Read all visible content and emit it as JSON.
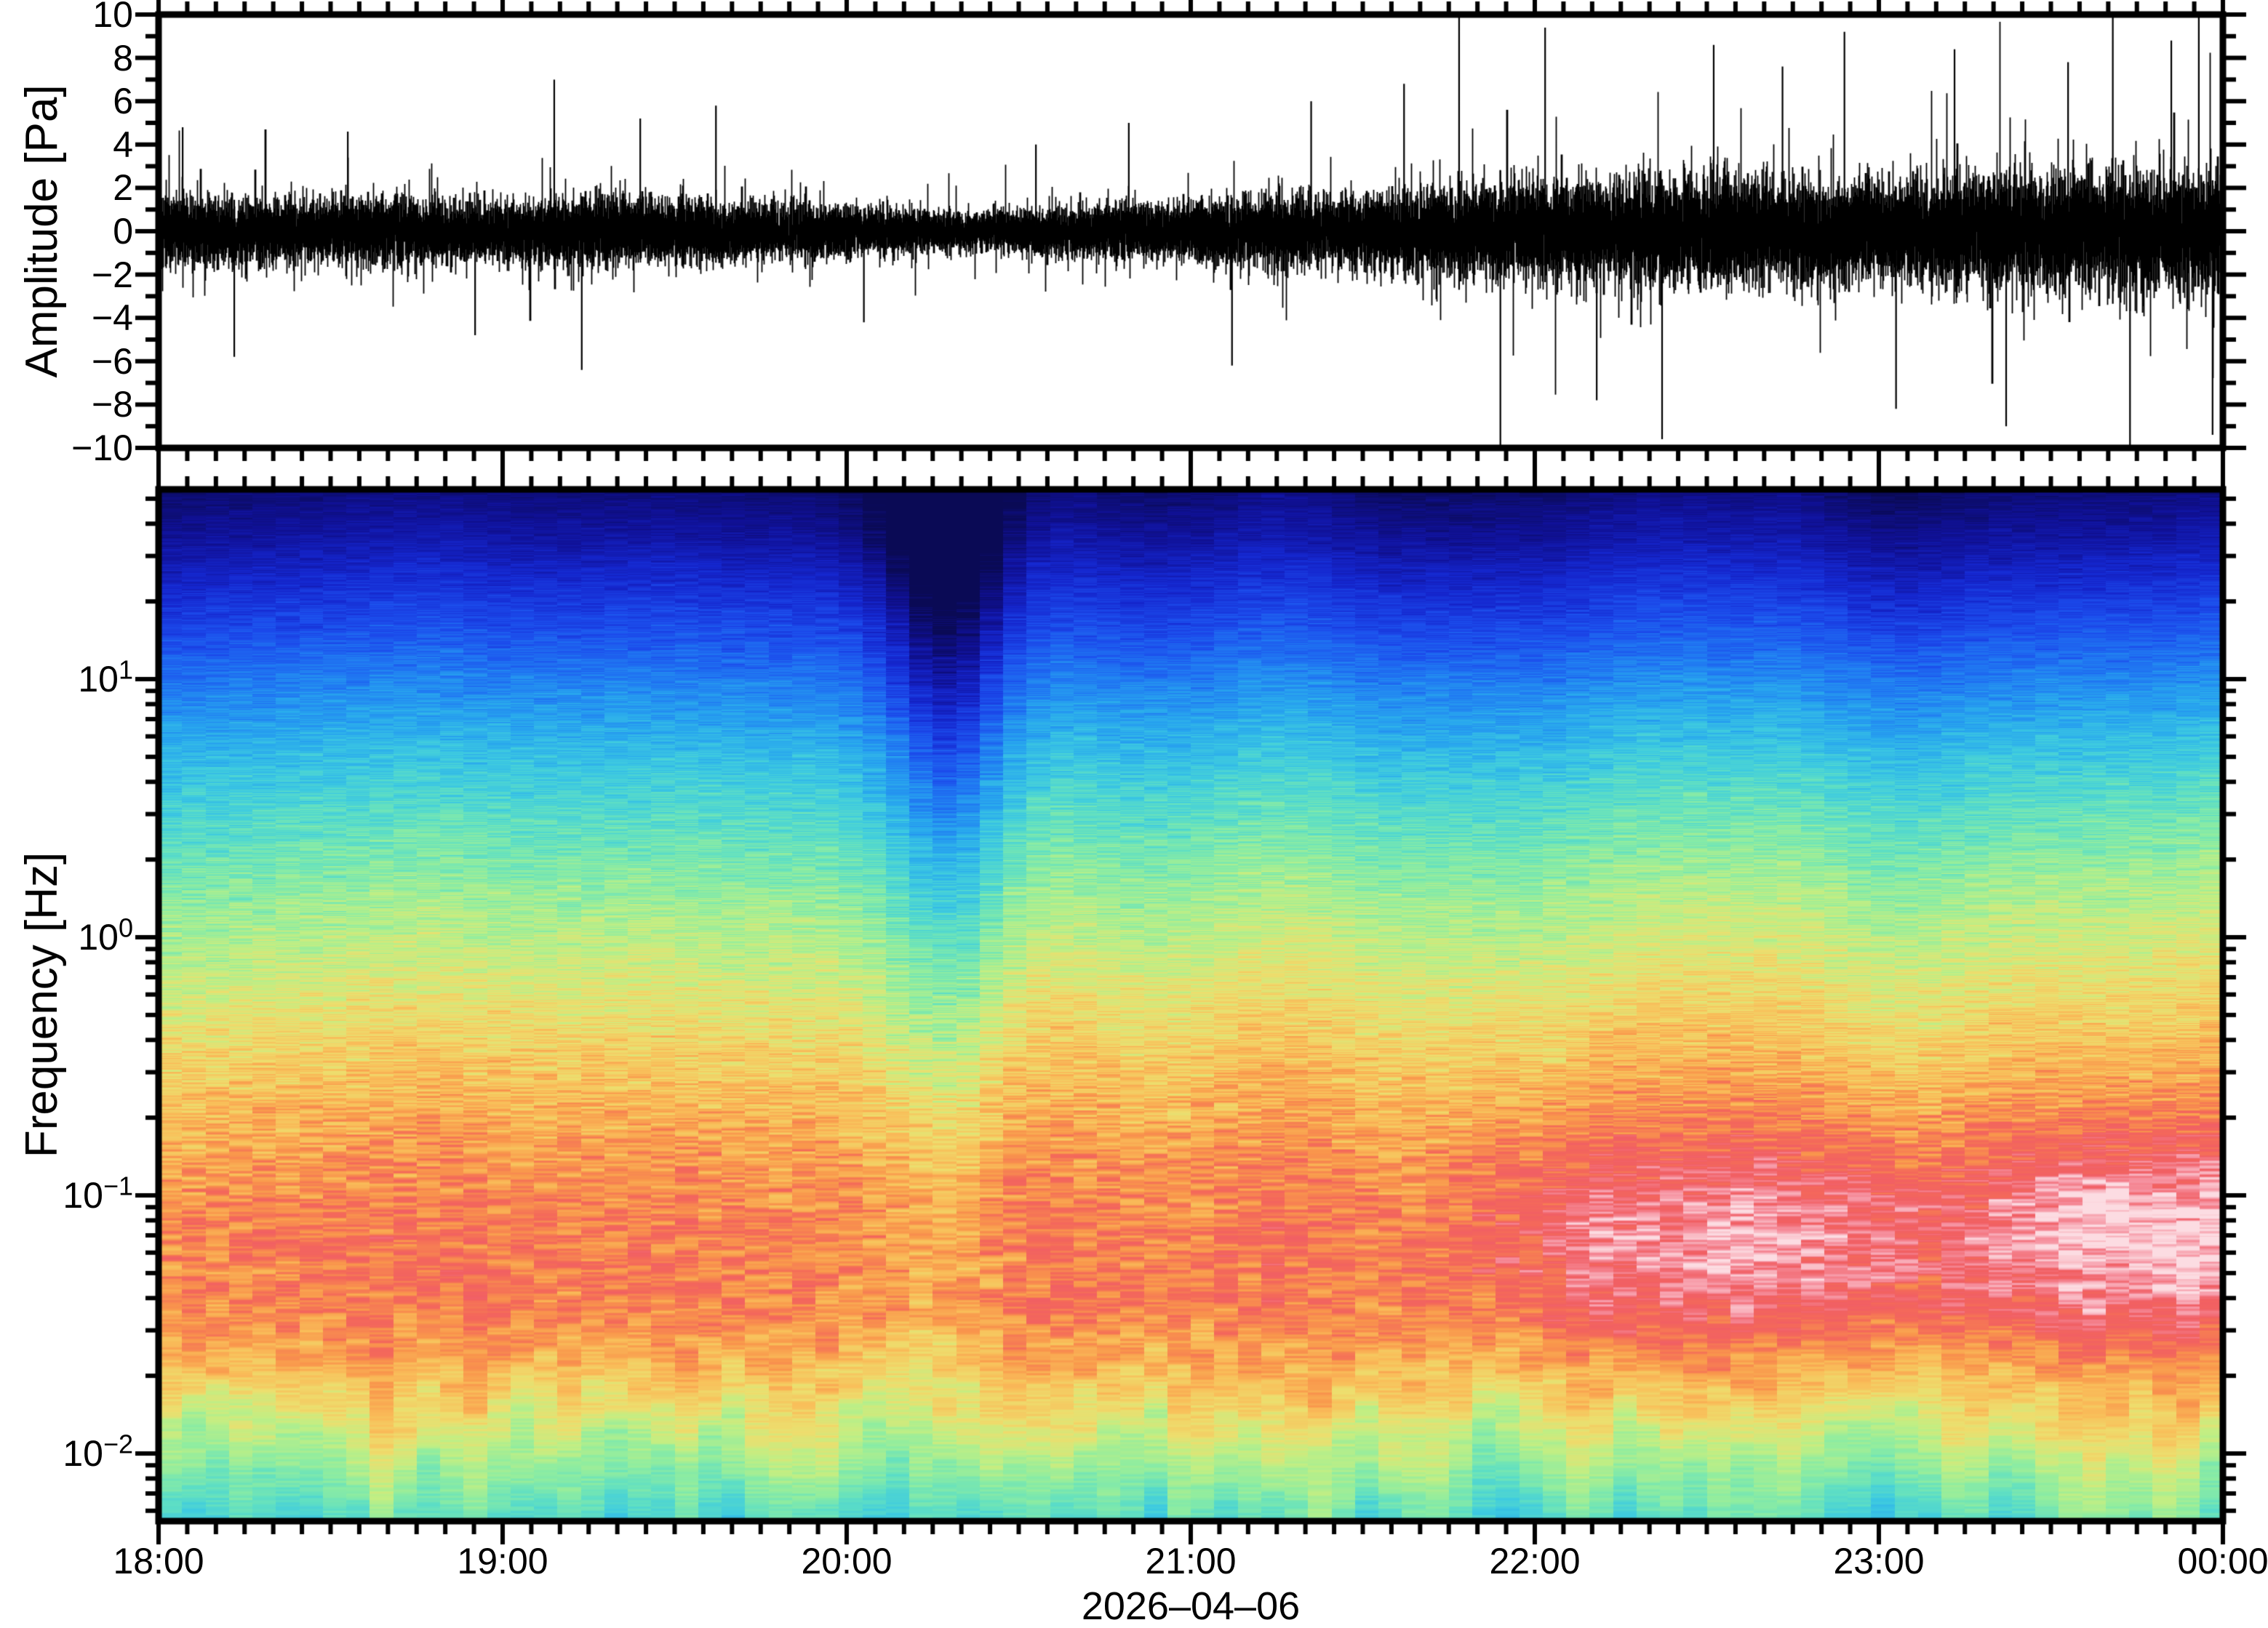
{
  "figure": {
    "background": "#ffffff",
    "frame_color": "#000000",
    "text_color": "#000000"
  },
  "x_axis": {
    "tick_labels": [
      "18:00",
      "19:00",
      "20:00",
      "21:00",
      "22:00",
      "23:00",
      "00:00"
    ],
    "tick_hours": [
      18,
      19,
      20,
      21,
      22,
      23,
      24
    ],
    "minor_tick_minutes": 5,
    "date_label": "2026–04–06"
  },
  "chart_data": [
    {
      "id": "pressure-waveform",
      "type": "line",
      "ylabel": "Amplitude [Pa]",
      "ylim": [
        -10,
        10
      ],
      "ytick_step": 2,
      "ytick_labels": [
        "10",
        "8",
        "6",
        "4",
        "2",
        "0",
        "−2",
        "−4",
        "−6",
        "−8",
        "−10"
      ],
      "x_range_hours": [
        18,
        24
      ],
      "line_color": "#000000",
      "description": "Zero-mean broadband infrasound pressure trace. Noise RMS shrinks to a minimum near 20:20, then grows toward midnight with sporadic spikes.",
      "envelope": {
        "hours": [
          18.0,
          18.5,
          19.0,
          19.3,
          19.7,
          20.0,
          20.18,
          20.35,
          20.6,
          21.0,
          21.5,
          22.0,
          22.5,
          23.0,
          23.5,
          24.0
        ],
        "sigma_pa": [
          0.38,
          0.35,
          0.34,
          0.4,
          0.32,
          0.28,
          0.24,
          0.21,
          0.27,
          0.34,
          0.42,
          0.55,
          0.58,
          0.56,
          0.63,
          0.68
        ]
      },
      "spikes_hour_amp_pa": [
        [
          18.07,
          2.4
        ],
        [
          18.22,
          -2.9
        ],
        [
          18.55,
          2.3
        ],
        [
          18.92,
          -2.4
        ],
        [
          19.15,
          3.5
        ],
        [
          19.23,
          -3.2
        ],
        [
          19.4,
          2.6
        ],
        [
          19.62,
          2.9
        ],
        [
          20.05,
          -2.1
        ],
        [
          20.55,
          2.0
        ],
        [
          20.82,
          2.5
        ],
        [
          21.12,
          -3.1
        ],
        [
          21.35,
          3.0
        ],
        [
          21.62,
          3.4
        ],
        [
          21.78,
          5.4
        ],
        [
          21.9,
          -5.6
        ],
        [
          22.03,
          4.7
        ],
        [
          22.18,
          -3.9
        ],
        [
          22.37,
          -4.8
        ],
        [
          22.52,
          4.3
        ],
        [
          22.72,
          3.8
        ],
        [
          22.9,
          4.6
        ],
        [
          23.05,
          -4.1
        ],
        [
          23.22,
          4.2
        ],
        [
          23.37,
          -4.5
        ],
        [
          23.55,
          3.9
        ],
        [
          23.68,
          6.7
        ],
        [
          23.73,
          -5.2
        ],
        [
          23.85,
          4.4
        ],
        [
          23.93,
          5.1
        ],
        [
          23.97,
          -4.7
        ]
      ],
      "seed": 11
    },
    {
      "id": "spectrogram",
      "type": "heatmap",
      "ylabel": "Frequency [Hz]",
      "yscale": "log",
      "freq_limits_hz": [
        0.0055,
        54
      ],
      "ytick_decade_exponents": [
        1,
        0,
        -1,
        -2
      ],
      "x_range_hours": [
        18,
        24
      ],
      "time_bins": 88,
      "bin_df_hz": 0.003,
      "log_noise_scale": 120,
      "seed": 7,
      "description": "Power spectrogram, log-frequency axis. Low power (dark blue) above 10 Hz, increasing power toward 0.1 Hz (red). Quiet interval near 20:20; microbarom/long-period band (0.02-0.2 Hz) intensifies to pink-white after 22:00; teal-green floor below 0.01 Hz.",
      "colormap_stops": [
        [
          0.0,
          "#0a0a55"
        ],
        [
          0.07,
          "#101197"
        ],
        [
          0.14,
          "#1527cf"
        ],
        [
          0.21,
          "#1c4cec"
        ],
        [
          0.28,
          "#2079f2"
        ],
        [
          0.35,
          "#28a7ee"
        ],
        [
          0.42,
          "#3ecbe0"
        ],
        [
          0.48,
          "#61e0c2"
        ],
        [
          0.54,
          "#90eda0"
        ],
        [
          0.6,
          "#c3ee83"
        ],
        [
          0.66,
          "#edde6e"
        ],
        [
          0.72,
          "#f9bf5a"
        ],
        [
          0.78,
          "#f9974c"
        ],
        [
          0.84,
          "#f4695a"
        ],
        [
          0.89,
          "#f15f64"
        ],
        [
          0.94,
          "#f692a0"
        ],
        [
          1.0,
          "#fcdce2"
        ]
      ],
      "base_profile": {
        "log10_f": [
          1.74,
          1.55,
          1.35,
          1.15,
          0.95,
          0.72,
          0.45,
          0.15,
          -0.15,
          -0.5,
          -0.85,
          -1.15,
          -1.45,
          -1.65,
          -1.85,
          -2.05,
          -2.26
        ],
        "level": [
          0.02,
          0.07,
          0.14,
          0.21,
          0.29,
          0.37,
          0.45,
          0.53,
          0.6,
          0.68,
          0.755,
          0.8,
          0.79,
          0.73,
          0.65,
          0.56,
          0.47
        ]
      },
      "striation_amp": {
        "log10_f": [
          1.74,
          1.2,
          0.6,
          0.0,
          -0.6,
          -1.3,
          -1.7,
          -2.0,
          -2.26
        ],
        "amp": [
          0.03,
          0.05,
          0.06,
          0.07,
          0.085,
          0.095,
          0.08,
          0.06,
          0.05
        ]
      },
      "quiet_dip": {
        "center_hour": 20.3,
        "sigma_hours": 0.17,
        "weight_profile": {
          "log10_f": [
            1.74,
            0.8,
            0.3,
            0.0,
            -0.6,
            -1.2,
            -2.26
          ],
          "weight": [
            0.2,
            0.18,
            0.13,
            0.11,
            0.07,
            0.04,
            0.03
          ]
        }
      },
      "microbarom_surge": {
        "start_hour": 21.5,
        "full_hour": 22.15,
        "center_log10f": -1.15,
        "sigma_log10f": 0.42,
        "base_add": 0.07,
        "patch_add": 0.11
      },
      "trend": {
        "max_add": 0.05,
        "center_log10f": 0.1,
        "sigma_log10f": 1.15
      }
    }
  ]
}
